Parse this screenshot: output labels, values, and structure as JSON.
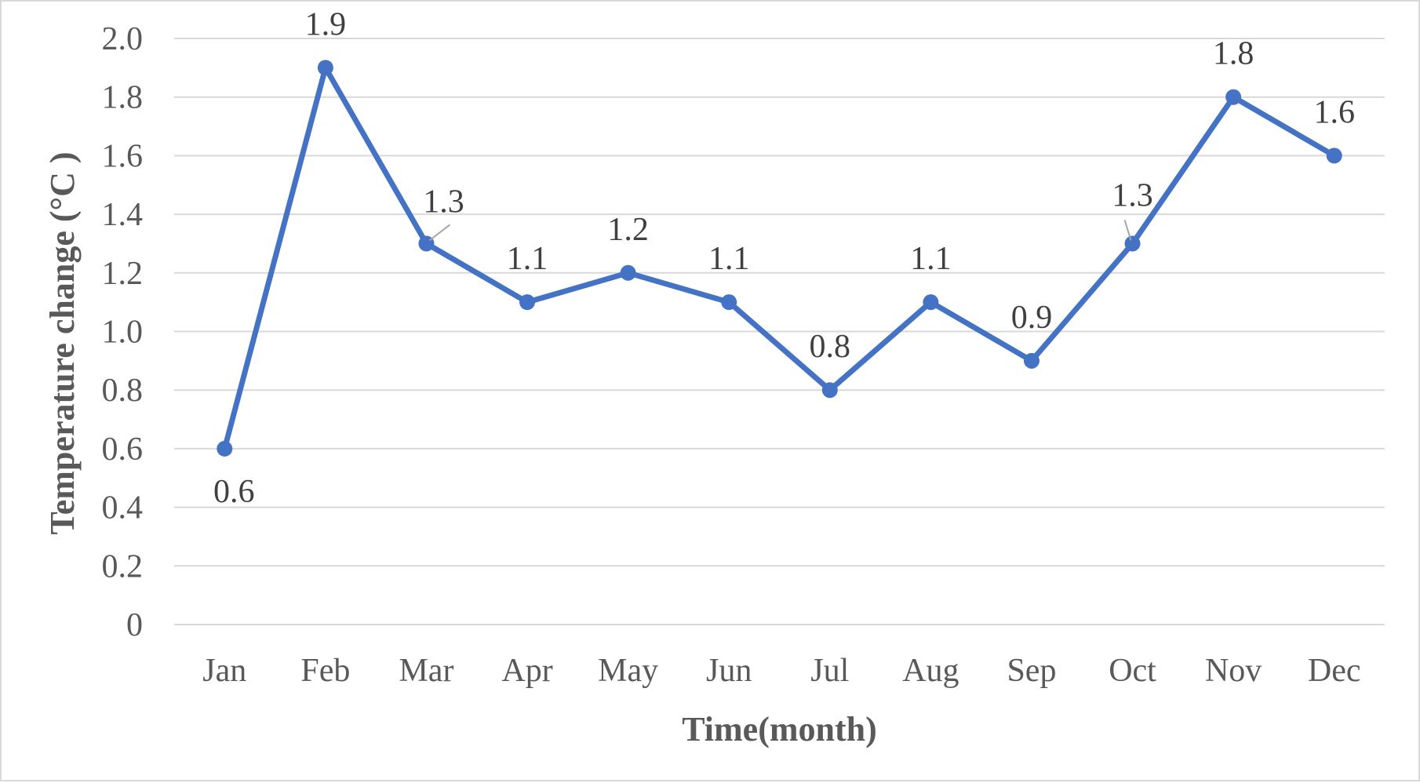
{
  "chart_data": {
    "type": "line",
    "title": "",
    "xlabel": "Time(month)",
    "ylabel": "Temperature change (°C )",
    "categories": [
      "Jan",
      "Feb",
      "Mar",
      "Apr",
      "May",
      "Jun",
      "Jul",
      "Aug",
      "Sep",
      "Oct",
      "Nov",
      "Dec"
    ],
    "series": [
      {
        "values": [
          0.6,
          1.9,
          1.3,
          1.1,
          1.2,
          1.1,
          0.8,
          1.1,
          0.9,
          1.3,
          1.8,
          1.6
        ],
        "data_labels": [
          "0.6",
          "1.9",
          "1.3",
          "1.1",
          "1.2",
          "1.1",
          "0.8",
          "1.1",
          "0.9",
          "1.3",
          "1.8",
          "1.6"
        ],
        "color": "#4472c4"
      }
    ],
    "ylim": [
      0,
      2.0
    ],
    "yticks": [
      "0",
      "0.2",
      "0.4",
      "0.6",
      "0.8",
      "1.0",
      "1.2",
      "1.4",
      "1.6",
      "1.8",
      "2.0"
    ],
    "grid": true,
    "legend": "none"
  }
}
